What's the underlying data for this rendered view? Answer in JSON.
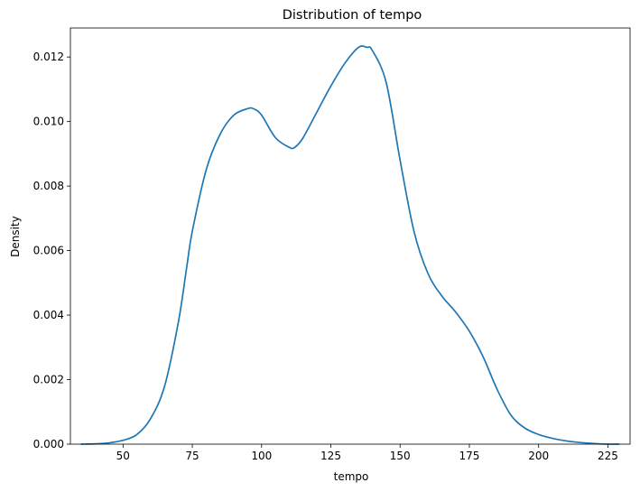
{
  "chart_data": {
    "type": "line",
    "title": "Distribution of tempo",
    "xlabel": "tempo",
    "ylabel": "Density",
    "xlim": [
      31,
      233
    ],
    "ylim": [
      0,
      0.0129
    ],
    "grid": false,
    "legend": "none",
    "x_ticks": [
      50,
      75,
      100,
      125,
      150,
      175,
      200,
      225
    ],
    "x_tick_labels": [
      "50",
      "75",
      "100",
      "125",
      "150",
      "175",
      "200",
      "225"
    ],
    "y_ticks": [
      0.0,
      0.002,
      0.004,
      0.006,
      0.008,
      0.01,
      0.012
    ],
    "y_tick_labels": [
      "0.000",
      "0.002",
      "0.004",
      "0.006",
      "0.008",
      "0.010",
      "0.012"
    ],
    "series": [
      {
        "color": "#1f77b4",
        "x": [
          35,
          40,
          45,
          50,
          55,
          60,
          65,
          70,
          73,
          75,
          80,
          85,
          90,
          95,
          97,
          100,
          105,
          110,
          112,
          115,
          120,
          125,
          130,
          135,
          138,
          140,
          145,
          150,
          155,
          160,
          165,
          170,
          175,
          180,
          185,
          190,
          195,
          200,
          205,
          210,
          215,
          220,
          225,
          229
        ],
        "y": [
          0.0,
          1e-05,
          4e-05,
          0.00012,
          0.0003,
          0.0008,
          0.0018,
          0.0038,
          0.0055,
          0.0066,
          0.0085,
          0.0096,
          0.0102,
          0.0104,
          0.0104,
          0.0102,
          0.0095,
          0.0092,
          0.0092,
          0.0095,
          0.0103,
          0.0111,
          0.0118,
          0.0123,
          0.0123,
          0.0122,
          0.0112,
          0.0088,
          0.0066,
          0.0053,
          0.0046,
          0.0041,
          0.0035,
          0.0027,
          0.0017,
          0.0009,
          0.0005,
          0.0003,
          0.00018,
          0.0001,
          5e-05,
          2e-05,
          0.0,
          0.0
        ]
      }
    ]
  }
}
